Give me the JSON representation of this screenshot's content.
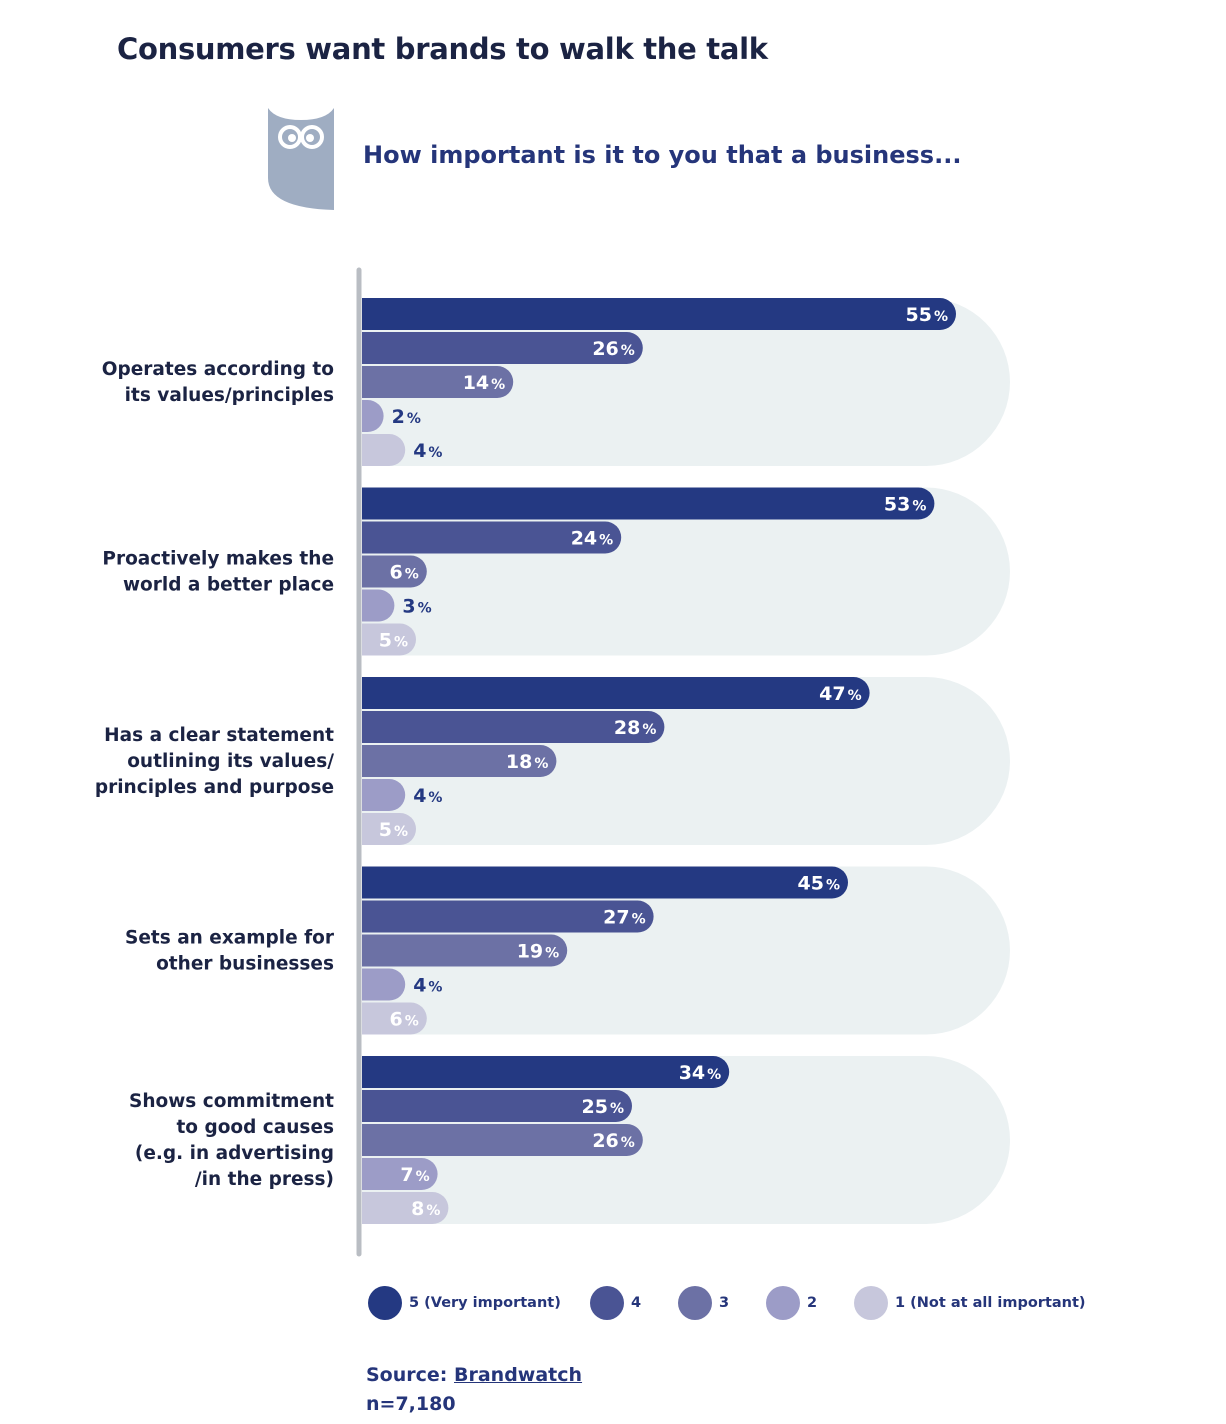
{
  "title": "Consumers want brands to walk the talk",
  "question": "How important is it to you that a business...",
  "icon": "owl-logo-icon",
  "colors": {
    "title": "#1b2343",
    "text": "#25357a",
    "panel": "#ebf1f2",
    "axis": "#b9bdc3",
    "rating_5": "#243982",
    "rating_4": "#4a5494",
    "rating_3": "#6c71a5",
    "rating_2": "#9c9cc7",
    "rating_1": "#c7c7dc",
    "owl": "#9fadc2"
  },
  "legend": [
    {
      "label": "5 (Very important)",
      "color": "#243982"
    },
    {
      "label": "4",
      "color": "#4a5494"
    },
    {
      "label": "3",
      "color": "#6c71a5"
    },
    {
      "label": "2",
      "color": "#9c9cc7"
    },
    {
      "label": "1 (Not at all important)",
      "color": "#c7c7dc"
    }
  ],
  "source": {
    "prefix": "Source: ",
    "link": "Brandwatch",
    "n": "n=7,180"
  },
  "chart_data": {
    "type": "bar",
    "orientation": "horizontal",
    "categories": [
      "Operates according to its values/principles",
      "Proactively makes the world a better place",
      "Has a clear statement outlining its values/ principles and purpose",
      "Sets an example for other businesses",
      "Shows commitment to good causes (e.g. in advertising /in the press)"
    ],
    "category_lines": [
      [
        "Operates according to",
        "its values/principles"
      ],
      [
        "Proactively makes the",
        "world a better place"
      ],
      [
        "Has a clear statement",
        "outlining its values/",
        "principles and purpose"
      ],
      [
        "Sets an example for",
        "other businesses"
      ],
      [
        "Shows commitment",
        "to good causes",
        "(e.g. in advertising",
        "/in the press)"
      ]
    ],
    "series": [
      {
        "name": "5 (Very important)",
        "values": [
          55,
          53,
          47,
          45,
          34
        ]
      },
      {
        "name": "4",
        "values": [
          26,
          24,
          28,
          27,
          25
        ]
      },
      {
        "name": "3",
        "values": [
          14,
          6,
          18,
          19,
          26
        ]
      },
      {
        "name": "2",
        "values": [
          2,
          3,
          4,
          4,
          7
        ]
      },
      {
        "name": "1 (Not at all important)",
        "values": [
          4,
          5,
          5,
          6,
          8
        ]
      }
    ],
    "value_suffix": "%",
    "xlim": [
      0,
      60
    ],
    "legend_position": "bottom",
    "grid": false
  }
}
